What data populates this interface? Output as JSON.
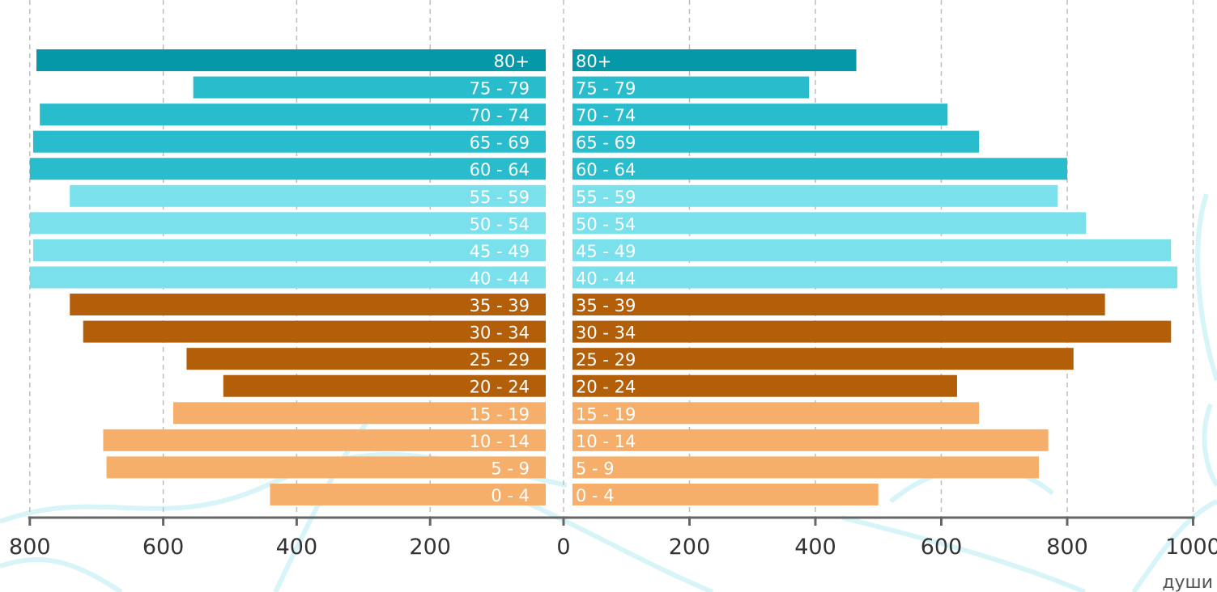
{
  "chart_data": {
    "type": "bar",
    "orientation": "horizontal",
    "layout": "population-pyramid",
    "categories": [
      "80+",
      "75 - 79",
      "70 - 74",
      "65 - 69",
      "60 - 64",
      "55 - 59",
      "50 - 54",
      "45 - 49",
      "40 - 44",
      "35 - 39",
      "30 - 34",
      "25 - 29",
      "20 - 24",
      "15 - 19",
      "10 - 14",
      "5 - 9",
      "0 - 4"
    ],
    "series": [
      {
        "side": "left",
        "values": [
          790,
          555,
          785,
          795,
          800,
          740,
          800,
          795,
          800,
          740,
          720,
          565,
          510,
          585,
          690,
          685,
          440
        ]
      },
      {
        "side": "right",
        "values": [
          465,
          390,
          610,
          660,
          800,
          785,
          830,
          965,
          975,
          860,
          965,
          810,
          625,
          660,
          770,
          755,
          500
        ]
      }
    ],
    "left_axis": {
      "ticks": [
        0,
        200,
        400,
        600,
        800
      ],
      "tick_labels": [
        "0",
        "200",
        "400",
        "600",
        "800"
      ]
    },
    "right_axis": {
      "ticks": [
        0,
        200,
        400,
        600,
        800,
        1000
      ],
      "tick_labels": [
        "0",
        "200",
        "400",
        "600",
        "800",
        "1000"
      ]
    },
    "unit_label": "души",
    "grid": true,
    "colors": {
      "80+": "#0598a8",
      "60-79": "#28bccd",
      "40-59": "#79e0ec",
      "20-39": "#b35f0a",
      "0-19": "#f5af6a",
      "axis": "#666666",
      "grid": "#bdbdbd",
      "background_lines": "#b7ebf2"
    }
  }
}
